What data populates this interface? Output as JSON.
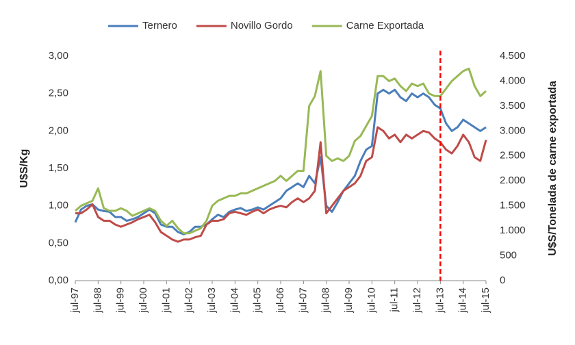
{
  "chart_data": {
    "type": "line",
    "categories": [
      "jul-97",
      null,
      null,
      null,
      "jul-98",
      null,
      null,
      null,
      "jul-99",
      null,
      null,
      null,
      "jul-00",
      null,
      null,
      null,
      "jul-01",
      null,
      null,
      null,
      "jul-02",
      null,
      null,
      null,
      "jul-03",
      null,
      null,
      null,
      "jul-04",
      null,
      null,
      null,
      "jul-05",
      null,
      null,
      null,
      "jul-06",
      null,
      null,
      null,
      "jul-07",
      null,
      null,
      null,
      "jul-08",
      null,
      null,
      null,
      "jul-09",
      null,
      null,
      null,
      "jul-10",
      null,
      null,
      null,
      "jul-11",
      null,
      null,
      null,
      "jul-12",
      null,
      null,
      null,
      "jul-13",
      null,
      null,
      null,
      "jul-14",
      null,
      null,
      null,
      "jul-15"
    ],
    "series": [
      {
        "name": "Ternero",
        "color": "#4a7ebb",
        "values": [
          0.78,
          0.95,
          1.0,
          1.02,
          0.95,
          0.93,
          0.92,
          0.85,
          0.85,
          0.8,
          0.82,
          0.85,
          0.9,
          0.95,
          0.9,
          0.75,
          0.72,
          0.72,
          0.65,
          0.62,
          0.65,
          0.72,
          0.72,
          0.75,
          0.82,
          0.88,
          0.85,
          0.92,
          0.95,
          0.97,
          0.93,
          0.95,
          0.98,
          0.95,
          1.0,
          1.05,
          1.1,
          1.2,
          1.25,
          1.3,
          1.25,
          1.4,
          1.3,
          1.65,
          1.0,
          0.92,
          1.05,
          1.2,
          1.3,
          1.4,
          1.6,
          1.75,
          1.8,
          2.5,
          2.55,
          2.5,
          2.55,
          2.45,
          2.4,
          2.5,
          2.45,
          2.5,
          2.45,
          2.35,
          2.3,
          2.1,
          2.0,
          2.05,
          2.15,
          2.1,
          2.05,
          2.0,
          2.05
        ]
      },
      {
        "name": "Novillo Gordo",
        "color": "#be4b48",
        "values": [
          0.9,
          0.9,
          0.95,
          1.02,
          0.85,
          0.8,
          0.8,
          0.75,
          0.72,
          0.75,
          0.78,
          0.82,
          0.85,
          0.88,
          0.78,
          0.65,
          0.6,
          0.55,
          0.52,
          0.55,
          0.55,
          0.58,
          0.6,
          0.75,
          0.8,
          0.8,
          0.82,
          0.9,
          0.92,
          0.9,
          0.88,
          0.92,
          0.95,
          0.9,
          0.95,
          0.98,
          1.0,
          0.98,
          1.05,
          1.1,
          1.05,
          1.1,
          1.2,
          1.85,
          0.9,
          1.0,
          1.1,
          1.2,
          1.25,
          1.3,
          1.4,
          1.6,
          1.65,
          2.05,
          2.0,
          1.9,
          1.95,
          1.85,
          1.95,
          1.9,
          1.95,
          2.0,
          1.98,
          1.9,
          1.85,
          1.75,
          1.7,
          1.8,
          1.95,
          1.85,
          1.65,
          1.6,
          1.88
        ]
      },
      {
        "name": "Carne Exportada",
        "color": "#98b954",
        "axis": "y2",
        "values": [
          1400,
          1500,
          1550,
          1600,
          1850,
          1450,
          1400,
          1400,
          1450,
          1400,
          1300,
          1350,
          1400,
          1450,
          1400,
          1200,
          1100,
          1200,
          1050,
          950,
          950,
          1000,
          1050,
          1200,
          1500,
          1600,
          1650,
          1700,
          1700,
          1750,
          1750,
          1800,
          1850,
          1900,
          1950,
          2000,
          2100,
          2000,
          2100,
          2200,
          2200,
          3500,
          3700,
          4200,
          2500,
          2400,
          2450,
          2400,
          2500,
          2800,
          2900,
          3100,
          3300,
          4100,
          4100,
          4000,
          4050,
          3900,
          3800,
          3950,
          3900,
          3950,
          3750,
          3700,
          3700,
          3850,
          4000,
          4100,
          4200,
          4250,
          3900,
          3700,
          3800
        ]
      }
    ],
    "ylabel": "U$S/Kg",
    "y2label": "U$S/Tonelada de carne exportada",
    "ylim": [
      0,
      3
    ],
    "yticks": [
      {
        "value": 0,
        "label": "0,00"
      },
      {
        "value": 0.5,
        "label": "0,50"
      },
      {
        "value": 1,
        "label": "1,00"
      },
      {
        "value": 1.5,
        "label": "1,50"
      },
      {
        "value": 2,
        "label": "2,00"
      },
      {
        "value": 2.5,
        "label": "2,50"
      },
      {
        "value": 3,
        "label": "3,00"
      }
    ],
    "y2lim": [
      0,
      4500
    ],
    "y2ticks": [
      0,
      500,
      {
        "value": 1000,
        "label": "1.000"
      },
      {
        "value": 1500,
        "label": "1.500"
      },
      {
        "value": 2000,
        "label": "2.000"
      },
      {
        "value": 2500,
        "label": "2.500"
      },
      {
        "value": 3000,
        "label": "3.000"
      },
      {
        "value": 3500,
        "label": "3.500"
      },
      {
        "value": 4000,
        "label": "4.000"
      },
      {
        "value": 4500,
        "label": "4.500"
      }
    ],
    "legend": "top",
    "grid": false,
    "reference_line": {
      "x": "jul-13",
      "color": "#ff0000",
      "style": "dashed"
    }
  }
}
